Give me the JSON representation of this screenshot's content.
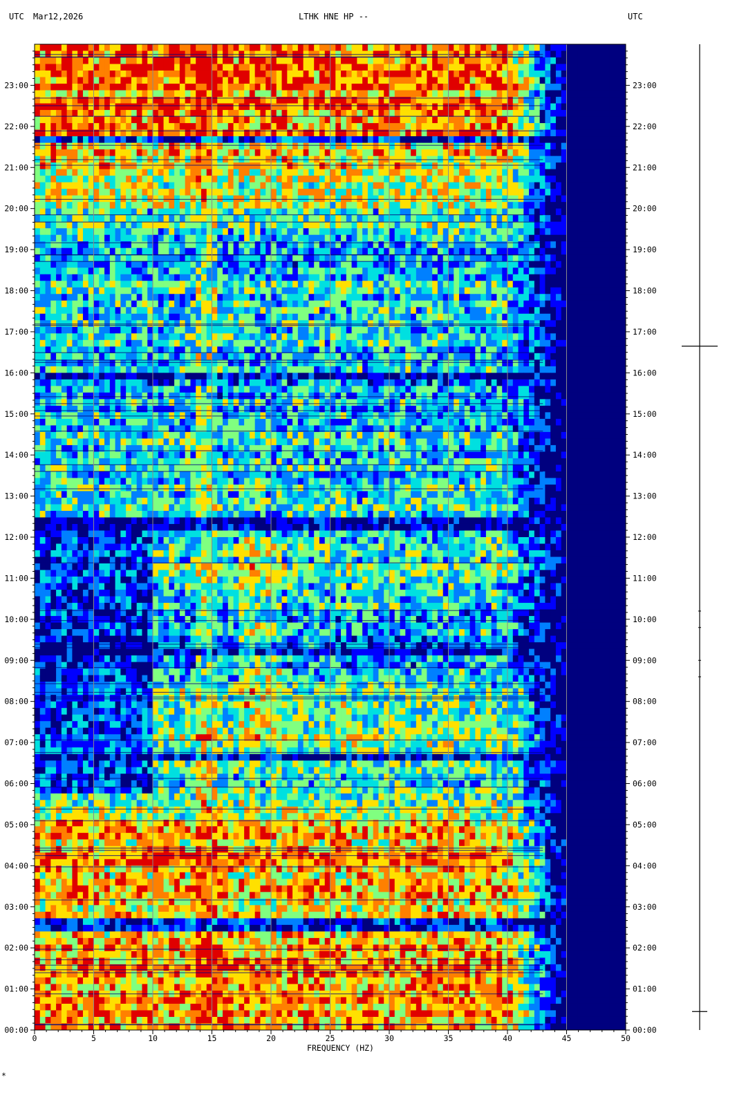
{
  "header": {
    "left_tz": "UTC",
    "date": "Mar12,2026",
    "station": "LTHK HNE HP --",
    "right_tz": "UTC"
  },
  "footer_mark": "*",
  "chart_data": {
    "type": "heatmap",
    "title": "LTHK HNE HP --",
    "xlabel": "FREQUENCY (HZ)",
    "ylabel": "",
    "x_ticks": [
      0,
      5,
      10,
      15,
      20,
      25,
      30,
      35,
      40,
      45,
      50
    ],
    "xlim": [
      0,
      50
    ],
    "ylim_hours": [
      0,
      24
    ],
    "y_tick_labels": [
      "00:00",
      "01:00",
      "02:00",
      "03:00",
      "04:00",
      "05:00",
      "06:00",
      "07:00",
      "08:00",
      "09:00",
      "10:00",
      "11:00",
      "12:00",
      "13:00",
      "14:00",
      "15:00",
      "16:00",
      "17:00",
      "18:00",
      "19:00",
      "20:00",
      "21:00",
      "22:00",
      "23:00"
    ],
    "grid": true,
    "colormap": [
      "#00007f",
      "#0000ff",
      "#0080ff",
      "#00e0e0",
      "#80ff80",
      "#ffe000",
      "#ff8000",
      "#e00000"
    ],
    "energy_by_hour": [
      0.78,
      0.8,
      0.74,
      0.7,
      0.78,
      0.7,
      0.45,
      0.55,
      0.55,
      0.35,
      0.35,
      0.52,
      0.4,
      0.48,
      0.45,
      0.4,
      0.38,
      0.45,
      0.42,
      0.4,
      0.52,
      0.68,
      0.78,
      0.8
    ],
    "quiet_bands_hours": [
      2.45,
      2.75,
      12.2,
      12.45,
      6.6,
      6.7,
      15.8,
      16.0,
      21.55,
      21.8,
      9.05,
      9.2
    ],
    "rolloff_hz": 43,
    "right_trace_markers_hours": [
      0.45,
      16.65
    ]
  }
}
